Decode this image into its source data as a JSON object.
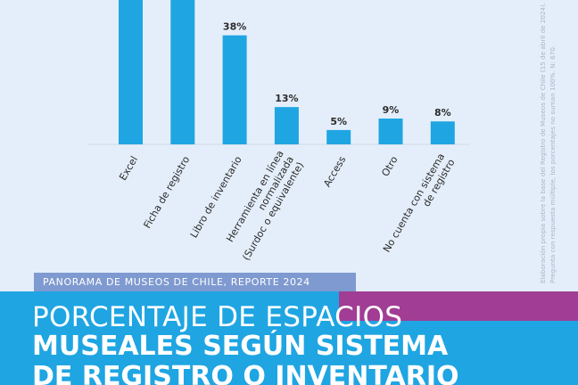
{
  "chart_data": {
    "type": "bar",
    "categories": [
      [
        "Excel"
      ],
      [
        "Ficha de registro"
      ],
      [
        "Libro de inventario"
      ],
      [
        "Herramienta en línea",
        "normalizada",
        "(Surdoc o equivalente)"
      ],
      [
        "Access"
      ],
      [
        "Otro"
      ],
      [
        "No cuenta con sistema",
        "de registro"
      ]
    ],
    "values": [
      null,
      null,
      38,
      13,
      5,
      9,
      8
    ],
    "value_labels": [
      "",
      "",
      "38%",
      "13%",
      "5%",
      "9%",
      "8%"
    ],
    "bar_color": "#1fa5e2"
  },
  "note": {
    "line1": "Elaboración propia sobre la base del Registro de Museos de Chile (15 de abril de 2024).",
    "line2": "Pregunta con respuesta múltiple, los porcentajes no suman 100%. N: 670."
  },
  "header": {
    "tag": "PANORAMA DE MUSEOS DE CHILE, REPORTE 2024",
    "title_line1": "PORCENTAJE DE ESPACIOS",
    "title_line2": "MUSEALES SEGÚN SISTEMA",
    "title_line3": "DE REGISTRO O INVENTARIO"
  },
  "colors": {
    "accent_blue": "#1fa5e2",
    "accent_purple": "#a13d94",
    "tag_bg": "#7f9ad0",
    "background": "#e4eefa"
  }
}
